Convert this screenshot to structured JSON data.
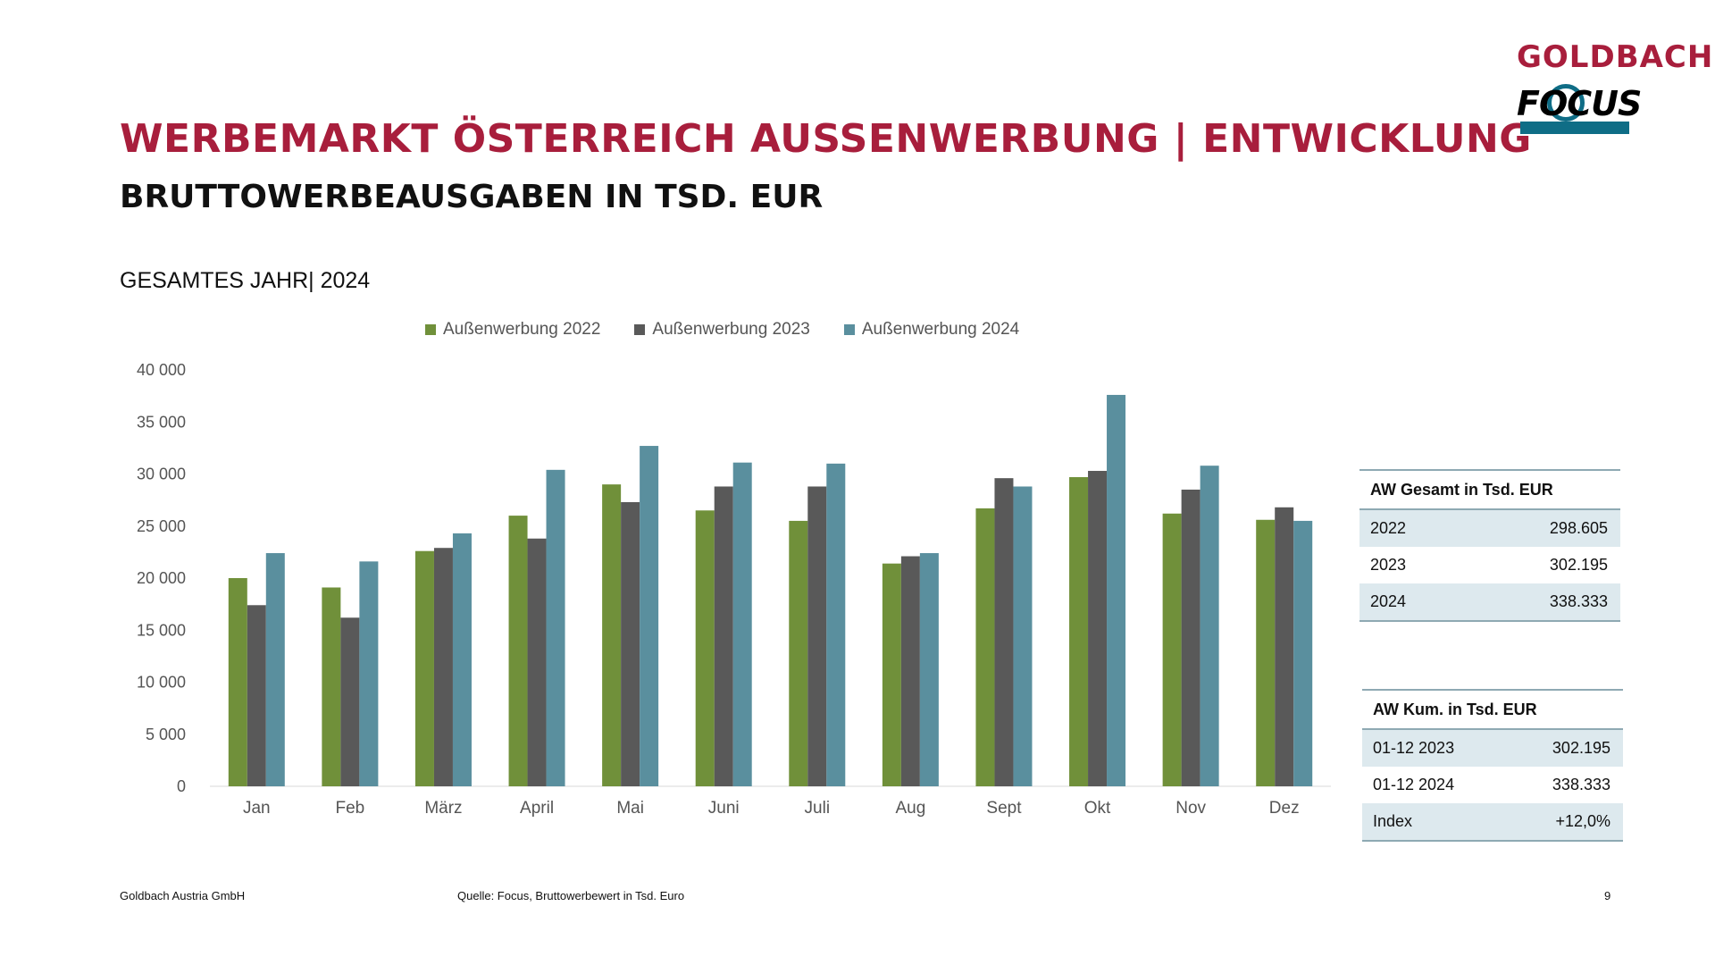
{
  "header": {
    "title": "WERBEMARKT ÖSTERREICH AUSSENWERBUNG  | ENTWICKLUNG",
    "subtitle": "BRUTTOWERBEAUSGABEN IN TSD. EUR",
    "period": "GESAMTES JAHR| 2024"
  },
  "logo": {
    "brand": "GOLDBACH",
    "sub": "FOCUS"
  },
  "colors": {
    "s2022": "#70903a",
    "s2023": "#595959",
    "s2024": "#5a8f9e",
    "title": "#a81e3c"
  },
  "chart_data": {
    "type": "bar",
    "categories": [
      "Jan",
      "Feb",
      "März",
      "April",
      "Mai",
      "Juni",
      "Juli",
      "Aug",
      "Sept",
      "Okt",
      "Nov",
      "Dez"
    ],
    "series": [
      {
        "name": "Außenwerbung 2022",
        "values": [
          20000,
          19100,
          22600,
          26000,
          29000,
          26500,
          25500,
          21400,
          26700,
          29700,
          26200,
          25600
        ]
      },
      {
        "name": "Außenwerbung 2023",
        "values": [
          17400,
          16200,
          22900,
          23800,
          27300,
          28800,
          28800,
          22100,
          29600,
          30300,
          28500,
          26800
        ]
      },
      {
        "name": "Außenwerbung 2024",
        "values": [
          22400,
          21600,
          24300,
          30400,
          32700,
          31100,
          31000,
          22400,
          28800,
          37600,
          30800,
          25500
        ]
      }
    ],
    "ylim": [
      0,
      40000
    ],
    "yticks": [
      "0",
      "5 000",
      "10 000",
      "15 000",
      "20 000",
      "25 000",
      "30 000",
      "35 000",
      "40 000"
    ],
    "legend_position": "top",
    "grid": false
  },
  "table_total": {
    "header": "AW Gesamt in Tsd. EUR",
    "rows": [
      {
        "label": "2022",
        "value": "298.605"
      },
      {
        "label": "2023",
        "value": "302.195"
      },
      {
        "label": "2024",
        "value": "338.333"
      }
    ]
  },
  "table_cum": {
    "header": "AW Kum. in Tsd. EUR",
    "rows": [
      {
        "label": "01-12 2023",
        "value": "302.195"
      },
      {
        "label": "01-12 2024",
        "value": "338.333"
      },
      {
        "label": "Index",
        "value": "+12,0%"
      }
    ]
  },
  "footer": {
    "company": "Goldbach Austria GmbH",
    "source": "Quelle: Focus, Bruttowerbewert in Tsd. Euro",
    "page": "9"
  }
}
